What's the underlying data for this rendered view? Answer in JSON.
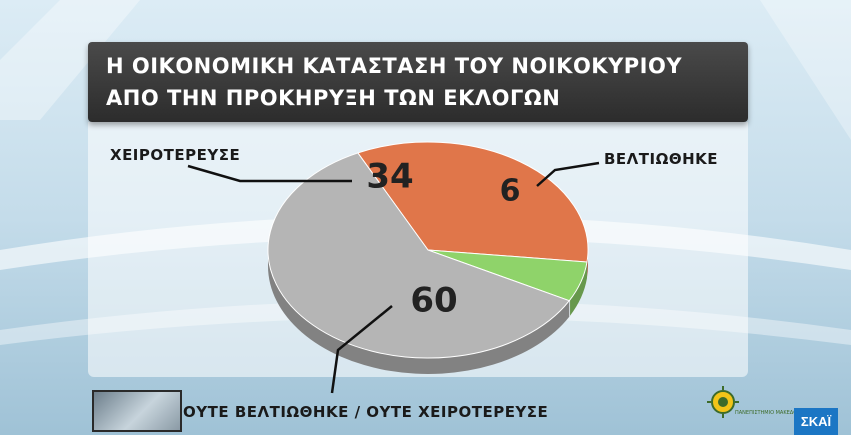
{
  "chart_data": {
    "type": "pie",
    "title_lines": [
      "Η ΟΙΚΟΝΟΜΙΚΗ ΚΑΤΑΣΤΑΣΗ ΤΟΥ ΝΟΙΚΟΚΥΡΙΟΥ",
      "ΑΠΟ ΤΗΝ ΠΡΟΚΗΡΥΞΗ ΤΩΝ ΕΚΛΟΓΩΝ"
    ],
    "slices": [
      {
        "label": "ΧΕΙΡΟΤΕΡΕΥΣΕ",
        "value": 34,
        "value_label": "34",
        "color": "#e0764a"
      },
      {
        "label": "ΒΕΛΤΙΩΘΗΚΕ",
        "value": 6,
        "value_label": "6",
        "color": "#8fd36a"
      },
      {
        "label": "ΟΥΤΕ ΒΕΛΤΙΩΘΗΚΕ / ΟΥΤΕ ΧΕΙΡΟΤΕΡΕΥΣΕ",
        "value": 60,
        "value_label": "60",
        "color": "#b5b5b5"
      }
    ],
    "legend": "none",
    "style": "3d"
  },
  "channel": {
    "name": "ΣΚΑΪ"
  },
  "logo": {
    "text": "ΠΑΝΕΠΙΣΤΗΜΙΟ ΜΑΚΕΔΟΝΙΑΣ"
  }
}
